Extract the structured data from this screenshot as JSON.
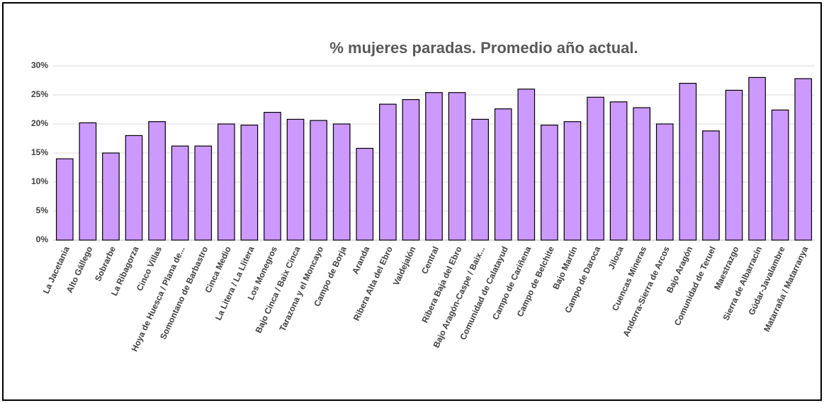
{
  "chart_data": {
    "type": "bar",
    "title": "% mujeres paradas. Promedio año actual.",
    "categories": [
      "La Jacetania",
      "Alto Gállego",
      "Sobrarbe",
      "La Ribagorza",
      "Cinco Villas",
      "Hoya de Huesca / Plana de...",
      "Somontano de Barbastro",
      "Cinca Medio",
      "La Litera / La Llitera",
      "Los Monegros",
      "Bajo Cinca / Baix Cinca",
      "Tarazona y el Moncayo",
      "Campo de Borja",
      "Aranda",
      "Ribera Alta del Ebro",
      "Valdejalón",
      "Central",
      "Ribera Baja del Ebro",
      "Bajo Aragón-Caspe / Baix...",
      "Comunidad de Calatayud",
      "Campo de Cariñena",
      "Campo de Belchite",
      "Bajo Martín",
      "Campo de Daroca",
      "Jiloca",
      "Cuencas Mineras",
      "Andorra-Sierra de Arcos",
      "Bajo Aragón",
      "Comunidad de Teruel",
      "Maestrazgo",
      "Sierra de Albarracín",
      "Gúdar-Javalambre",
      "Matarraña / Matarranya"
    ],
    "values": [
      14,
      20.2,
      15,
      18,
      20.4,
      16.2,
      16.2,
      20,
      19.8,
      22,
      20.8,
      20.6,
      20,
      15.8,
      23.4,
      24.2,
      25.4,
      25.4,
      20.8,
      22.6,
      26,
      19.8,
      20.4,
      24.6,
      23.8,
      22.8,
      20,
      27,
      18.8,
      25.8,
      28,
      22.4,
      27.8
    ],
    "color": "#cc99ff",
    "ylim": [
      0,
      30
    ],
    "yticks": [
      {
        "value": 0,
        "label": "0%"
      },
      {
        "value": 5,
        "label": "5%"
      },
      {
        "value": 10,
        "label": "10%"
      },
      {
        "value": 15,
        "label": "15%"
      },
      {
        "value": 20,
        "label": "20%"
      },
      {
        "value": 25,
        "label": "25%"
      },
      {
        "value": 30,
        "label": "30%"
      }
    ],
    "grid": true
  }
}
